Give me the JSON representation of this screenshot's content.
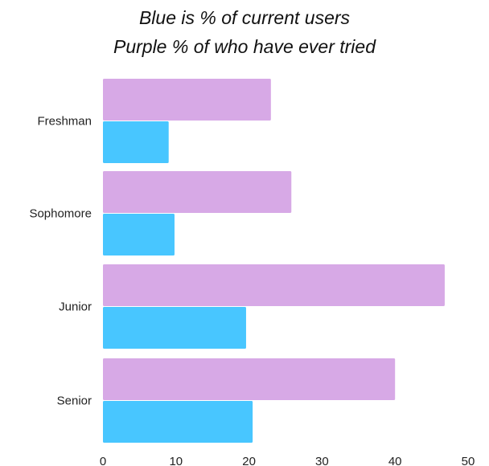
{
  "chart_data": {
    "type": "bar",
    "orientation": "horizontal",
    "title_lines": [
      "Blue is % of current users",
      "Purple % of who have ever tried"
    ],
    "categories": [
      "Freshman",
      "Sophomore",
      "Junior",
      "Senior"
    ],
    "series": [
      {
        "values": [
          23,
          25.8,
          46.8,
          40
        ],
        "color": "#d7a9e6"
      },
      {
        "values": [
          9,
          9.8,
          19.6,
          20.5
        ],
        "color": "#48c6ff"
      }
    ],
    "x_ticks": [
      "0",
      "10",
      "20",
      "30",
      "40",
      "50"
    ],
    "xlim": [
      0,
      50
    ],
    "xlabel": "",
    "ylabel": "",
    "grid": false,
    "legend": "none"
  }
}
